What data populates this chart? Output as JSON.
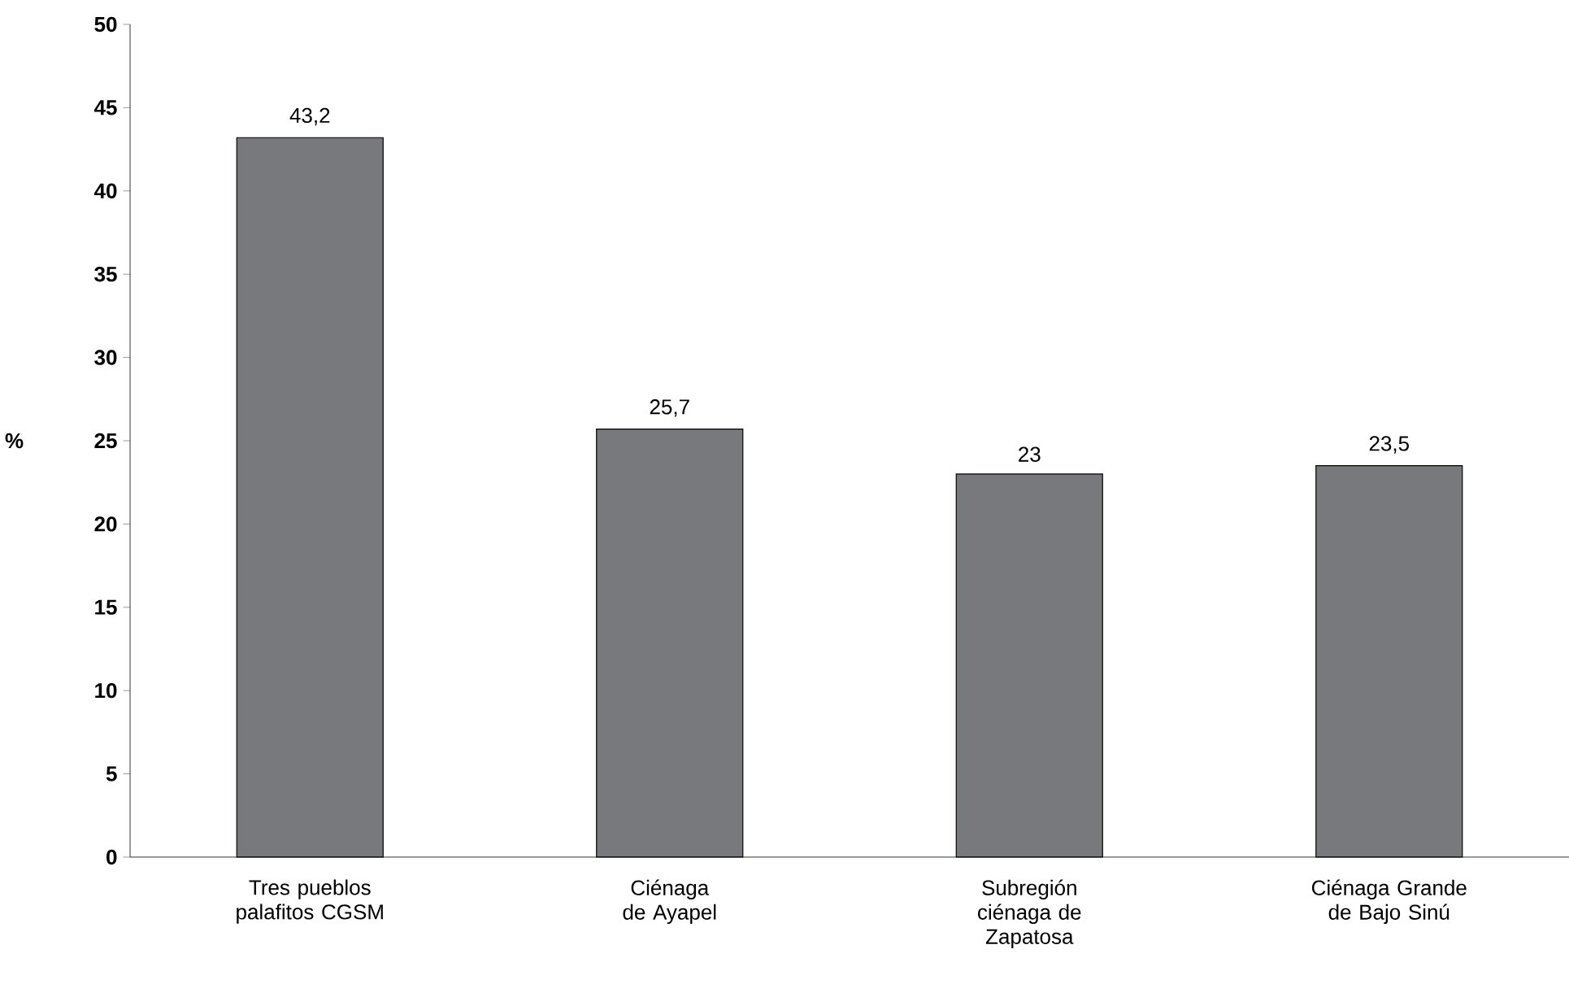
{
  "chart_data": {
    "type": "bar",
    "ylabel": "%",
    "categories": [
      "Tres pueblos palafitos CGSM",
      "Ciénaga de Ayapel",
      "Subregión ciénaga de Zapatosa",
      "Ciénaga Grande de Bajo Sinú"
    ],
    "values": [
      43.2,
      25.7,
      23,
      23.5
    ],
    "value_labels": [
      "43,2",
      "25,7",
      "23",
      "23,5"
    ],
    "color": "#78797c",
    "ylim": [
      0,
      50
    ],
    "yticks": [
      0,
      5,
      10,
      15,
      20,
      25,
      30,
      35,
      40,
      45,
      50
    ],
    "grid": false
  }
}
